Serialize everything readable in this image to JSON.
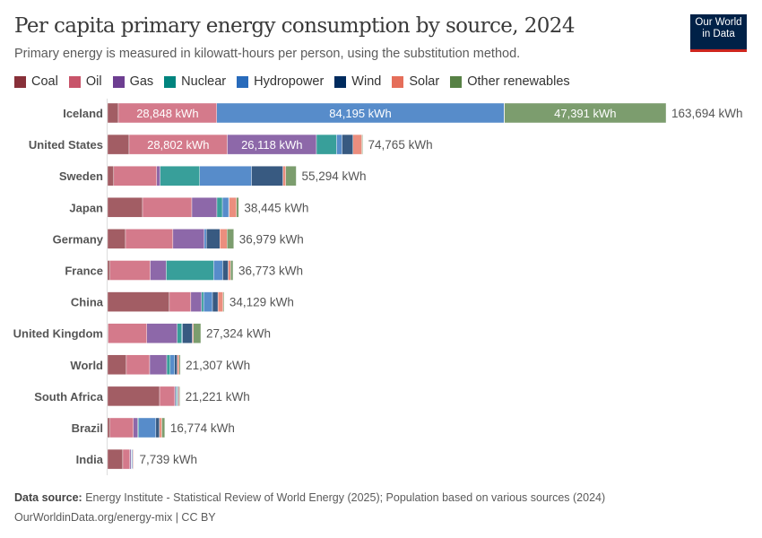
{
  "header": {
    "title": "Per capita primary energy consumption by source, 2024",
    "subtitle": "Primary energy is measured in kilowatt-hours per person, using the substitution method.",
    "logo": "Our World in Data"
  },
  "footer": {
    "source_label": "Data source:",
    "source": "Energy Institute - Statistical Review of World Energy (2025); Population based on various sources (2024)",
    "credit": "OurWorldinData.org/energy-mix | CC BY"
  },
  "chart_data": {
    "type": "bar",
    "orientation": "horizontal",
    "stacked": true,
    "unit": "kWh",
    "title": "Per capita primary energy consumption by source, 2024",
    "legend_placement": "top",
    "grid": false,
    "categories": [
      "Iceland",
      "United States",
      "Sweden",
      "Japan",
      "Germany",
      "France",
      "China",
      "United Kingdom",
      "World",
      "South Africa",
      "Brazil",
      "India"
    ],
    "totals": [
      163694,
      74765,
      55294,
      38445,
      36979,
      36773,
      34129,
      27324,
      21307,
      21221,
      16774,
      7739
    ],
    "series": [
      {
        "name": "Coal",
        "color": "#883039",
        "values": [
          3150,
          6300,
          1800,
          10250,
          5250,
          700,
          18100,
          200,
          5500,
          15250,
          700,
          4450
        ]
      },
      {
        "name": "Oil",
        "color": "#c8546a",
        "values": [
          28848,
          28802,
          12600,
          14450,
          13900,
          11800,
          6300,
          11300,
          6850,
          4450,
          6850,
          2100
        ]
      },
      {
        "name": "Gas",
        "color": "#6d3e91",
        "values": [
          0,
          26118,
          1000,
          7350,
          9200,
          4700,
          3150,
          8900,
          5000,
          300,
          1300,
          350
        ]
      },
      {
        "name": "Nuclear",
        "color": "#00847e",
        "values": [
          0,
          5900,
          11600,
          1600,
          0,
          13900,
          600,
          1350,
          1000,
          300,
          300,
          150
        ]
      },
      {
        "name": "Hydropower",
        "color": "#286bbb",
        "values": [
          84195,
          1600,
          15200,
          1850,
          600,
          2650,
          2600,
          200,
          1300,
          100,
          5000,
          250
        ]
      },
      {
        "name": "Wind",
        "color": "#002b5e",
        "values": [
          60,
          3200,
          9200,
          150,
          3950,
          1600,
          1600,
          2900,
          750,
          300,
          1050,
          150
        ]
      },
      {
        "name": "Solar",
        "color": "#e56e5a",
        "values": [
          50,
          2600,
          800,
          2100,
          2100,
          700,
          1500,
          300,
          550,
          300,
          700,
          200
        ]
      },
      {
        "name": "Other renewables",
        "color": "#578145",
        "values": [
          47391,
          245,
          3094,
          695,
          1979,
          723,
          279,
          2174,
          357,
          221,
          874,
          89
        ]
      }
    ]
  }
}
